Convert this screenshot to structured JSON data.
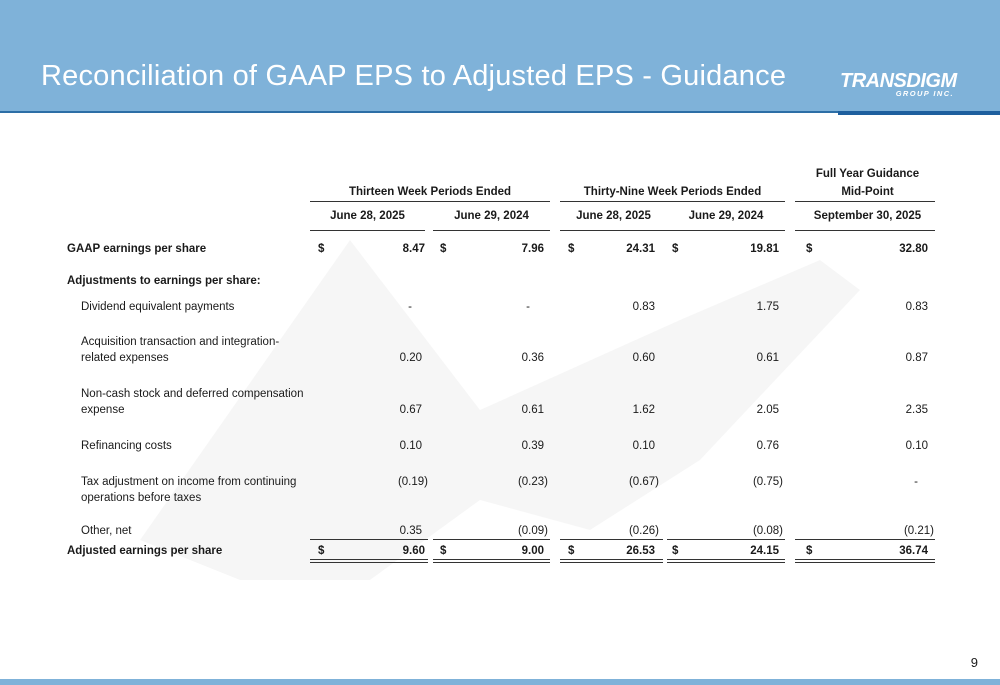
{
  "slide": {
    "title": "Reconciliation of GAAP EPS to Adjusted EPS - Guidance",
    "logo_main": "TRANSDIGM",
    "logo_sub": "GROUP INC.",
    "page_number": "9",
    "colors": {
      "header": "#7fb2d9",
      "accent": "#1e5f9e"
    }
  },
  "table": {
    "group_headers": {
      "thirteen": "Thirteen Week Periods Ended",
      "thirty_nine": "Thirty-Nine Week Periods Ended",
      "full_year_line1": "Full Year Guidance",
      "full_year_line2": "Mid-Point"
    },
    "columns": [
      "June 28, 2025",
      "June 29, 2024",
      "June 28, 2025",
      "June 29, 2024",
      "September 30, 2025"
    ],
    "currency": "$",
    "rows": [
      {
        "label": "GAAP earnings per share",
        "label2": "",
        "values": [
          "8.47",
          "7.96",
          "24.31",
          "19.81",
          "32.80"
        ]
      },
      {
        "label": "Adjustments to earnings per share:",
        "label2": "",
        "values": []
      },
      {
        "label": "Dividend equivalent payments",
        "label2": "",
        "values": [
          "-",
          "-",
          "0.83",
          "1.75",
          "0.83"
        ]
      },
      {
        "label": "Acquisition transaction and integration-",
        "label2": "related expenses",
        "values": [
          "0.20",
          "0.36",
          "0.60",
          "0.61",
          "0.87"
        ]
      },
      {
        "label": "Non-cash stock and deferred compensation",
        "label2": "expense",
        "values": [
          "0.67",
          "0.61",
          "1.62",
          "2.05",
          "2.35"
        ]
      },
      {
        "label": "Refinancing costs",
        "label2": "",
        "values": [
          "0.10",
          "0.39",
          "0.10",
          "0.76",
          "0.10"
        ]
      },
      {
        "label": "Tax adjustment on income from continuing",
        "label2": "operations before taxes",
        "values": [
          "(0.19)",
          "(0.23)",
          "(0.67)",
          "(0.75)",
          "-"
        ]
      },
      {
        "label": "Other, net",
        "label2": "",
        "values": [
          "0.35",
          "(0.09)",
          "(0.26)",
          "(0.08)",
          "(0.21)"
        ]
      },
      {
        "label": "Adjusted earnings per share",
        "label2": "",
        "values": [
          "9.60",
          "9.00",
          "26.53",
          "24.15",
          "36.74"
        ]
      }
    ]
  }
}
